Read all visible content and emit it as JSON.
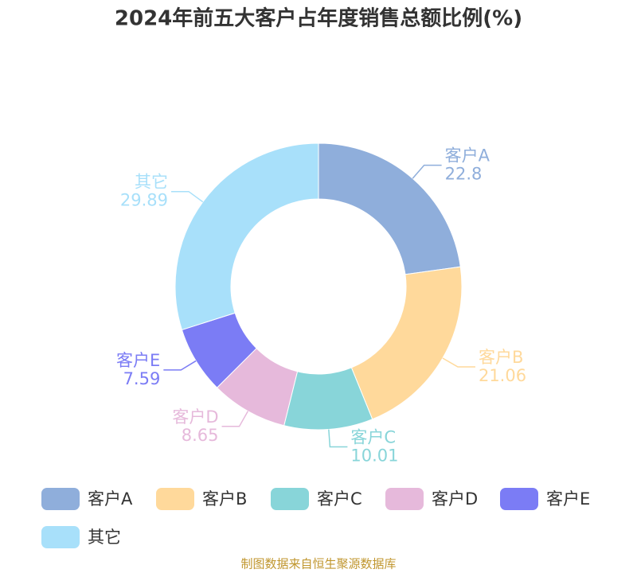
{
  "chart_data": {
    "type": "donut",
    "title": "2024年前五大客户占年度销售总额比例(%)",
    "categories": [
      "客户A",
      "客户B",
      "客户C",
      "客户D",
      "客户E",
      "其它"
    ],
    "values": [
      22.8,
      21.06,
      10.01,
      8.65,
      7.59,
      29.89
    ],
    "colors": [
      "#8faedb",
      "#ffd99b",
      "#88d5d9",
      "#e6b9db",
      "#7b7cf5",
      "#a8e0fa"
    ],
    "source": "制图数据来自恒生聚源数据库"
  }
}
